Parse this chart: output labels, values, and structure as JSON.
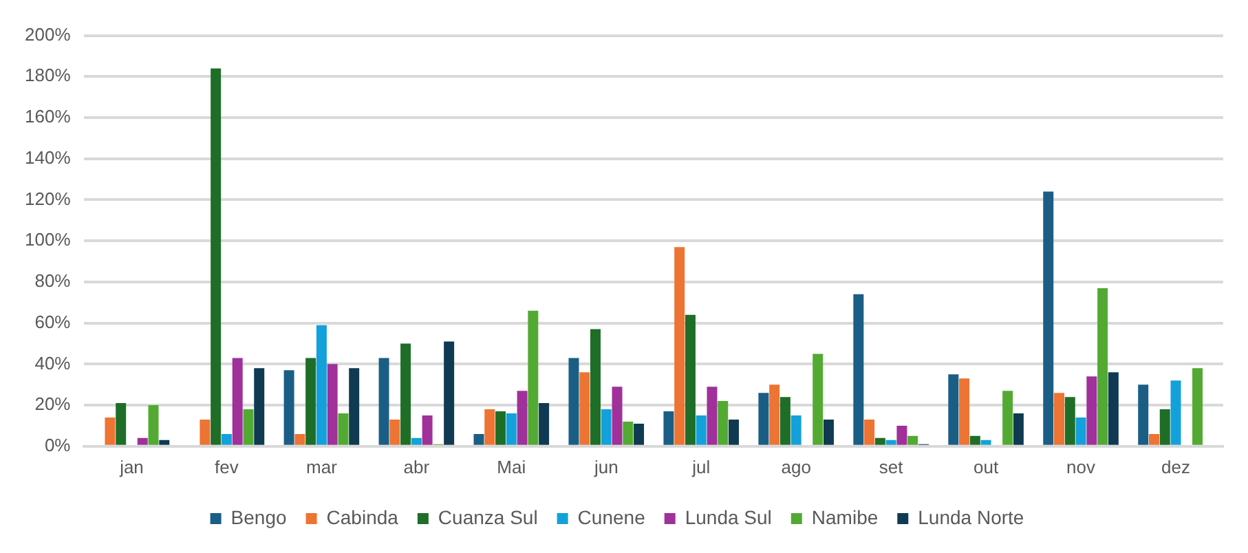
{
  "chart_data": {
    "type": "bar",
    "categories": [
      "jan",
      "fev",
      "mar",
      "abr",
      "Mai",
      "jun",
      "jul",
      "ago",
      "set",
      "out",
      "nov",
      "dez"
    ],
    "series": [
      {
        "name": "Bengo",
        "color": "#1a5e85",
        "values": [
          null,
          null,
          37,
          43,
          6,
          43,
          17,
          26,
          74,
          35,
          124,
          30
        ]
      },
      {
        "name": "Cabinda",
        "color": "#ed7432",
        "values": [
          14,
          13,
          6,
          13,
          18,
          36,
          97,
          30,
          13,
          33,
          26,
          6
        ]
      },
      {
        "name": "Cuanza Sul",
        "color": "#1e6e28",
        "values": [
          21,
          184,
          43,
          50,
          17,
          57,
          64,
          24,
          4,
          5,
          24,
          18
        ]
      },
      {
        "name": "Cunene",
        "color": "#12a1da",
        "values": [
          null,
          6,
          59,
          4,
          16,
          18,
          15,
          15,
          3,
          3,
          14,
          32
        ]
      },
      {
        "name": "Lunda Sul",
        "color": "#a0309a",
        "values": [
          4,
          43,
          40,
          15,
          27,
          29,
          29,
          null,
          10,
          null,
          34,
          null
        ]
      },
      {
        "name": "Namibe",
        "color": "#52aa33",
        "values": [
          20,
          18,
          16,
          1,
          66,
          12,
          22,
          45,
          5,
          27,
          77,
          38
        ]
      },
      {
        "name": "Lunda Norte",
        "color": "#0f3a52",
        "values": [
          3,
          38,
          38,
          51,
          21,
          11,
          13,
          13,
          1,
          16,
          36,
          null
        ]
      }
    ],
    "ylim": [
      0,
      200
    ],
    "yticks": [
      {
        "value": 0,
        "label": "0%"
      },
      {
        "value": 20,
        "label": "20%"
      },
      {
        "value": 40,
        "label": "40%"
      },
      {
        "value": 60,
        "label": "60%"
      },
      {
        "value": 80,
        "label": "80%"
      },
      {
        "value": 100,
        "label": "100%"
      },
      {
        "value": 120,
        "label": "120%"
      },
      {
        "value": 140,
        "label": "140%"
      },
      {
        "value": 160,
        "label": "160%"
      },
      {
        "value": 180,
        "label": "180%"
      },
      {
        "value": 200,
        "label": "200%"
      }
    ],
    "grid": "y",
    "legend": "bottom"
  }
}
